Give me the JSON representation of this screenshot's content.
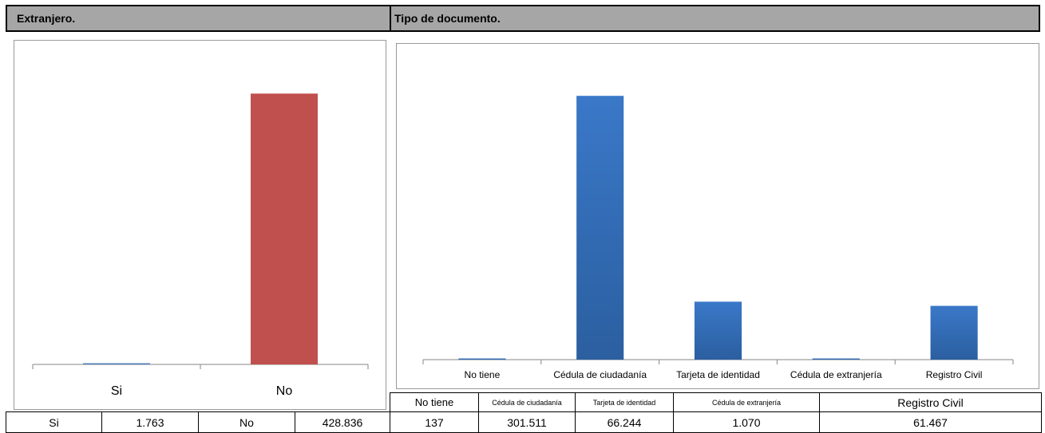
{
  "sections": {
    "extranjero_title": "Extranjero.",
    "tipo_title": "Tipo de documento."
  },
  "chart_data": [
    {
      "type": "bar",
      "categories": [
        "Si",
        "No"
      ],
      "values": [
        1763,
        428836
      ],
      "colors": [
        "#4f81bd",
        "#c0504d"
      ],
      "ylim": [
        0,
        500000
      ],
      "grid": false,
      "legend": "none"
    },
    {
      "type": "bar",
      "categories": [
        "No tiene",
        "Cédula de ciudadanía",
        "Tarjeta de identidad",
        "Cédula de extranjería",
        "Registro Civil"
      ],
      "values": [
        137,
        301511,
        66244,
        1070,
        61467
      ],
      "colors": [
        "#3a78c8",
        "#3a78c8",
        "#3a78c8",
        "#3a78c8",
        "#3a78c8"
      ],
      "ylim": [
        0,
        350000
      ],
      "grid": false,
      "legend": "none"
    }
  ],
  "table": {
    "extranjero": [
      {
        "label": "Si",
        "value": "1.763"
      },
      {
        "label": "No",
        "value": "428.836"
      }
    ],
    "tipo_headers": [
      "No tiene",
      "Cédula de ciudadanía",
      "Tarjeta de identidad",
      "Cédula de extranjería",
      "Registro Civil"
    ],
    "tipo_values": [
      "137",
      "301.511",
      "66.244",
      "1.070",
      "61.467"
    ]
  }
}
